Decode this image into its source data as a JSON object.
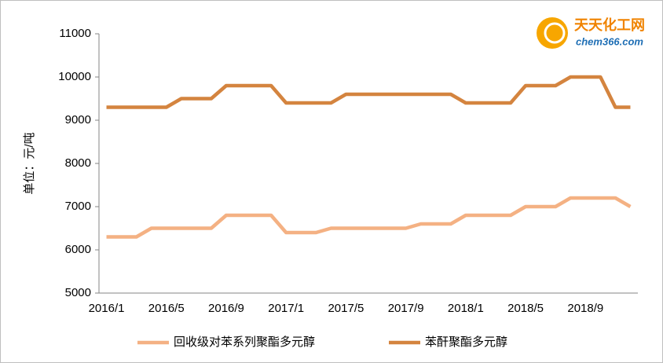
{
  "chart_data": {
    "type": "line",
    "ylabel": "单位：元/吨",
    "logo": {
      "name": "天天化工网",
      "url": "chem366.com"
    },
    "categories": [
      "2016/1",
      null,
      null,
      null,
      "2016/5",
      null,
      null,
      null,
      "2016/9",
      null,
      null,
      null,
      "2017/1",
      null,
      null,
      null,
      "2017/5",
      null,
      null,
      null,
      "2017/9",
      null,
      null,
      null,
      "2018/1",
      null,
      null,
      null,
      "2018/5",
      null,
      null,
      null,
      "2018/9",
      null,
      null,
      null
    ],
    "series": [
      {
        "name": "回收级对苯系列聚酯多元醇",
        "color": "#f4b183",
        "values": [
          6300,
          6300,
          6300,
          6500,
          6500,
          6500,
          6500,
          6500,
          6800,
          6800,
          6800,
          6800,
          6400,
          6400,
          6400,
          6500,
          6500,
          6500,
          6500,
          6500,
          6500,
          6600,
          6600,
          6600,
          6800,
          6800,
          6800,
          6800,
          7000,
          7000,
          7000,
          7200,
          7200,
          7200,
          7200,
          7000
        ]
      },
      {
        "name": "苯酐聚酯多元醇",
        "color": "#d4843f",
        "values": [
          9300,
          9300,
          9300,
          9300,
          9300,
          9500,
          9500,
          9500,
          9800,
          9800,
          9800,
          9800,
          9400,
          9400,
          9400,
          9400,
          9600,
          9600,
          9600,
          9600,
          9600,
          9600,
          9600,
          9600,
          9400,
          9400,
          9400,
          9400,
          9800,
          9800,
          9800,
          10000,
          10000,
          10000,
          9300,
          9300
        ]
      }
    ],
    "ylim": [
      5000,
      11000
    ],
    "yticks": [
      5000,
      6000,
      7000,
      8000,
      9000,
      10000,
      11000
    ],
    "legend": "bottom"
  }
}
